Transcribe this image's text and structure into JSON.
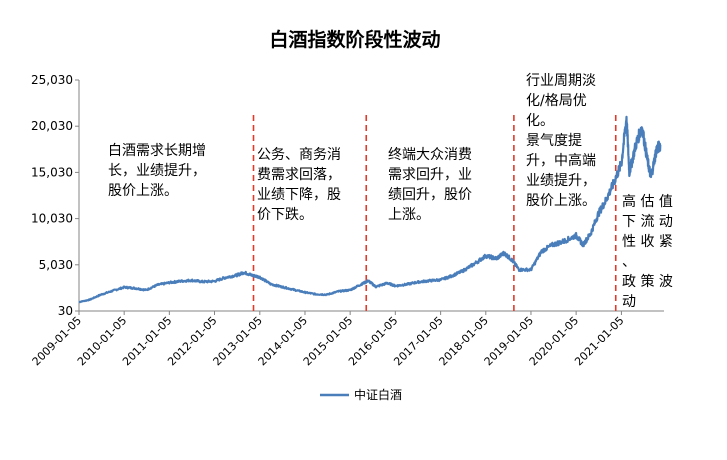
{
  "chart_data": {
    "type": "line",
    "title": "白酒指数阶段性波动",
    "xlabel": "",
    "ylabel": "",
    "ylim": [
      30,
      25030
    ],
    "yticks": [
      "30",
      "5,030",
      "10,030",
      "15,030",
      "20,030",
      "25,030"
    ],
    "xticks": [
      "2009-01-05",
      "2010-01-05",
      "2011-01-05",
      "2012-01-05",
      "2013-01-05",
      "2014-01-05",
      "2015-01-05",
      "2016-01-05",
      "2017-01-05",
      "2018-01-05",
      "2019-01-05",
      "2020-01-05",
      "2021-01-05"
    ],
    "grid": false,
    "legend": "bottom",
    "series": [
      {
        "name": "中证白酒",
        "color": "#4a7ebb",
        "points": [
          [
            "2009-01-05",
            1000
          ],
          [
            "2009-04-01",
            1250
          ],
          [
            "2009-07-01",
            1800
          ],
          [
            "2009-10-01",
            2200
          ],
          [
            "2010-01-05",
            2600
          ],
          [
            "2010-04-01",
            2500
          ],
          [
            "2010-07-01",
            2300
          ],
          [
            "2010-10-01",
            2850
          ],
          [
            "2011-01-05",
            3100
          ],
          [
            "2011-04-01",
            3250
          ],
          [
            "2011-07-01",
            3350
          ],
          [
            "2011-10-01",
            3200
          ],
          [
            "2012-01-05",
            3250
          ],
          [
            "2012-04-01",
            3650
          ],
          [
            "2012-07-01",
            3900
          ],
          [
            "2012-09-01",
            4200
          ],
          [
            "2012-11-01",
            3900
          ],
          [
            "2013-01-05",
            3700
          ],
          [
            "2013-04-01",
            2950
          ],
          [
            "2013-07-01",
            2650
          ],
          [
            "2013-10-01",
            2350
          ],
          [
            "2014-01-05",
            2050
          ],
          [
            "2014-04-01",
            1850
          ],
          [
            "2014-07-01",
            1800
          ],
          [
            "2014-10-01",
            2150
          ],
          [
            "2015-01-05",
            2300
          ],
          [
            "2015-04-01",
            2900
          ],
          [
            "2015-06-01",
            3300
          ],
          [
            "2015-08-01",
            2650
          ],
          [
            "2015-11-01",
            3050
          ],
          [
            "2016-01-05",
            2750
          ],
          [
            "2016-04-01",
            2900
          ],
          [
            "2016-07-01",
            3150
          ],
          [
            "2016-10-01",
            3300
          ],
          [
            "2017-01-05",
            3400
          ],
          [
            "2017-04-01",
            3800
          ],
          [
            "2017-07-01",
            4350
          ],
          [
            "2017-10-01",
            5100
          ],
          [
            "2018-01-05",
            6000
          ],
          [
            "2018-04-01",
            5700
          ],
          [
            "2018-06-01",
            6300
          ],
          [
            "2018-08-01",
            5600
          ],
          [
            "2018-10-01",
            4500
          ],
          [
            "2019-01-05",
            4500
          ],
          [
            "2019-04-01",
            6500
          ],
          [
            "2019-07-01",
            7200
          ],
          [
            "2019-10-01",
            7600
          ],
          [
            "2020-01-05",
            8200
          ],
          [
            "2020-03-01",
            7200
          ],
          [
            "2020-05-01",
            8400
          ],
          [
            "2020-07-01",
            10500
          ],
          [
            "2020-09-01",
            12000
          ],
          [
            "2020-11-01",
            13800
          ],
          [
            "2021-01-05",
            16000
          ],
          [
            "2021-02-15",
            21000
          ],
          [
            "2021-03-10",
            15000
          ],
          [
            "2021-05-01",
            18000
          ],
          [
            "2021-06-20",
            20000
          ],
          [
            "2021-08-01",
            16500
          ],
          [
            "2021-09-01",
            14500
          ],
          [
            "2021-10-15",
            17500
          ],
          [
            "2021-11-15",
            18000
          ]
        ]
      }
    ],
    "phase_dividers": [
      "2012-11-15",
      "2015-05-15",
      "2018-08-20",
      "2020-11-20"
    ],
    "annotations": [
      "白酒需求长期增\n长，业绩提升，\n股价上涨。",
      "公务、商务消\n费需求回落，\n业绩下降，股\n价下跌。",
      "终端大众消费\n需求回升，业\n绩回升，股价\n上涨。",
      "行业周期淡\n化/格局优\n化。\n景气度提\n升，中高端\n业绩提升，\n股价上涨。",
      "高 估 值\n下 流 动\n性 收 紧 、\n政 策 波\n动"
    ]
  }
}
